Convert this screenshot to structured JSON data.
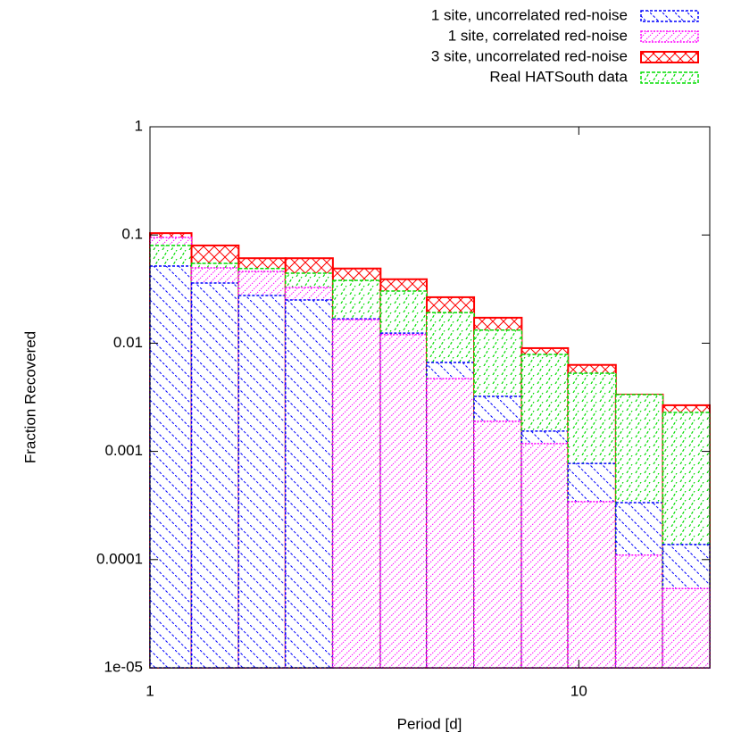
{
  "chart_data": {
    "type": "histogram",
    "xlabel": "Period [d]",
    "ylabel": "Fraction Recovered",
    "bins": [
      1,
      1.25,
      1.61,
      2.07,
      2.67,
      3.45,
      4.42,
      5.7,
      7.36,
      9.44,
      12.2,
      15.7,
      20.2
    ],
    "xlim": [
      1,
      20.2
    ],
    "xticks": [
      1,
      10
    ],
    "xlog": true,
    "ylim": [
      1e-05,
      1
    ],
    "ylog": true,
    "yticks": [
      1,
      0.1,
      0.01,
      0.001,
      0.0001,
      {
        "value": 1e-05,
        "label": "1e-05"
      }
    ],
    "legend": "top-right",
    "series": [
      {
        "name": "1 site, uncorrelated red-noise",
        "color": "#0000ff",
        "values": [
          0.0516,
          0.036,
          0.0276,
          0.0251,
          0.0168,
          0.0124,
          0.00664,
          0.00322,
          0.00154,
          0.000774,
          0.000336,
          0.000138
        ]
      },
      {
        "name": "1 site, correlated red-noise",
        "color": "#ff00ff",
        "values": [
          0.0948,
          0.0497,
          0.046,
          0.0327,
          0.0165,
          0.012,
          0.0047,
          0.0019,
          0.00118,
          0.000343,
          0.00011,
          5.4e-05
        ]
      },
      {
        "name": "3 site, uncorrelated red-noise",
        "color": "#ff0000",
        "values": [
          0.104,
          0.08,
          0.061,
          0.061,
          0.049,
          0.039,
          0.0266,
          0.0172,
          0.009,
          0.0063,
          0.00335,
          0.00267
        ]
      },
      {
        "name": "Real HATSouth data",
        "color": "#00dd00",
        "values": [
          0.08,
          0.0547,
          0.049,
          0.0443,
          0.038,
          0.0303,
          0.0192,
          0.0132,
          0.00787,
          0.00528,
          0.00335,
          0.00229
        ]
      }
    ]
  }
}
